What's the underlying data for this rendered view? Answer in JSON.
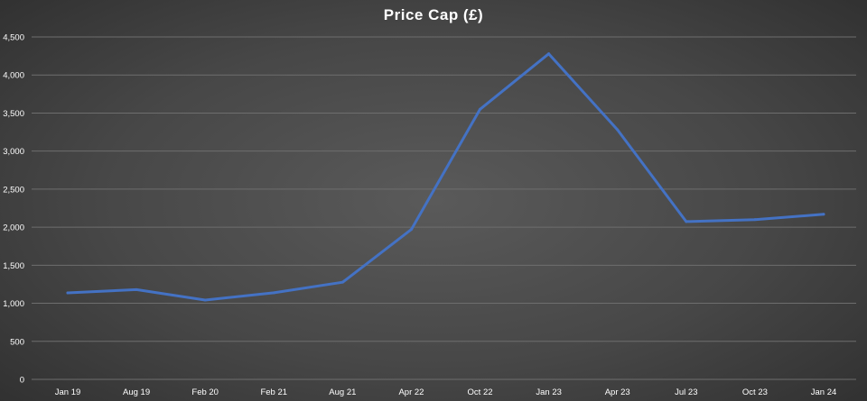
{
  "chart_data": {
    "type": "line",
    "title": "Price Cap (£)",
    "xlabel": "",
    "ylabel": "",
    "categories": [
      "Jan 19",
      "Aug 19",
      "Feb 20",
      "Feb 21",
      "Aug 21",
      "Apr 22",
      "Oct 22",
      "Jan 23",
      "Apr 23",
      "Jul 23",
      "Oct 23",
      "Jan 24"
    ],
    "series": [
      {
        "values": [
          1137,
          1179,
          1042,
          1138,
          1277,
          1971,
          3549,
          4279,
          3280,
          2074,
          2100,
          2170
        ],
        "color": "#4472c4"
      }
    ],
    "ylim": [
      0,
      4500
    ],
    "yticks": [
      0,
      500,
      1000,
      1500,
      2000,
      2500,
      3000,
      3500,
      4000,
      4500
    ],
    "ytick_labels": [
      "0",
      "500",
      "1,000",
      "1,500",
      "2,000",
      "2,500",
      "3,000",
      "3,500",
      "4,000",
      "4,500"
    ],
    "grid": true,
    "legend": "none"
  }
}
